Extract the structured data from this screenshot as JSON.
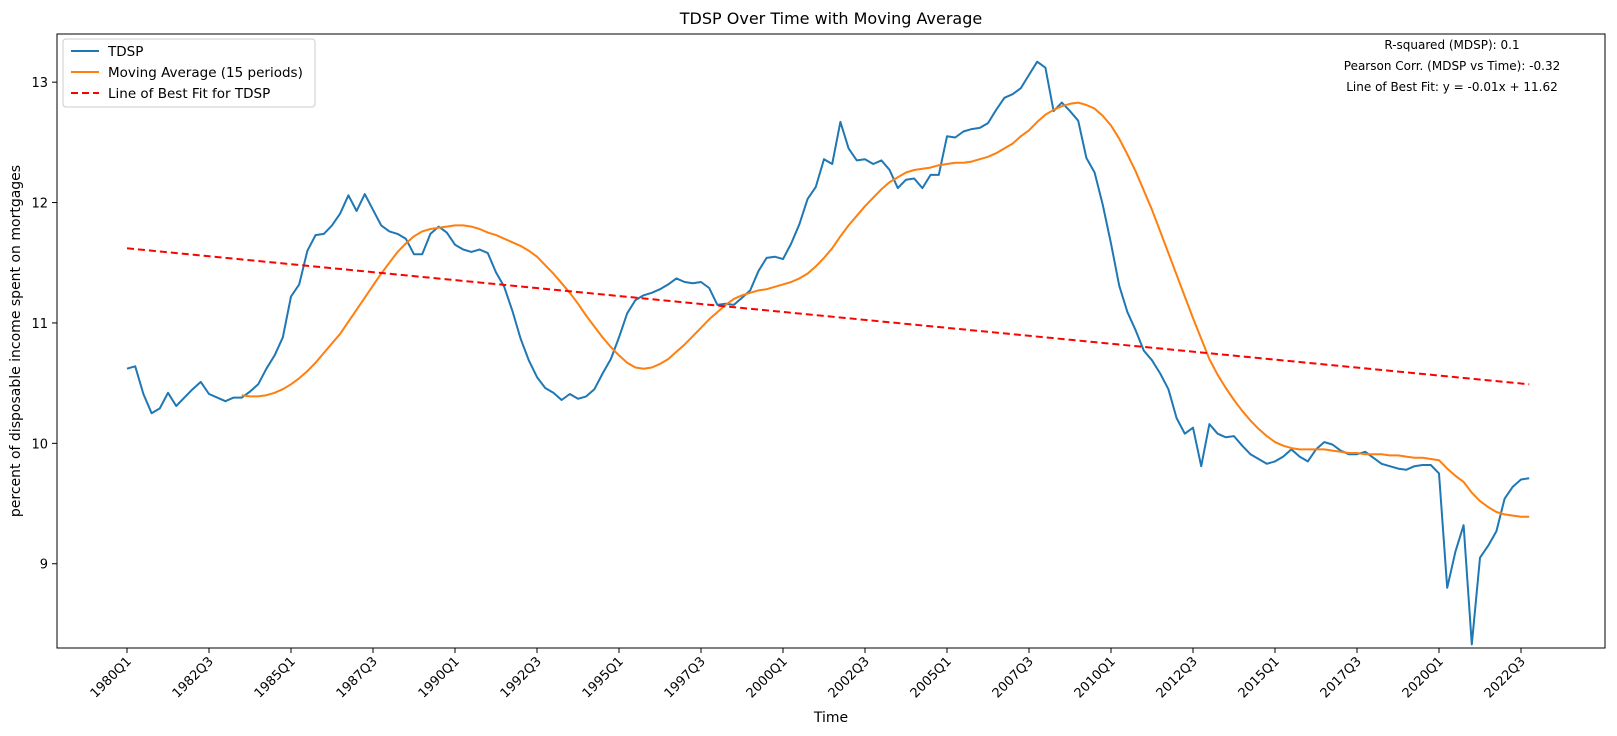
{
  "chart_data": {
    "type": "line",
    "title": "TDSP Over Time with Moving Average",
    "xlabel": "Time",
    "ylabel": "percent of disposable income spent on mortgages",
    "ylim": [
      8.3,
      13.4
    ],
    "yticks": [
      9,
      10,
      11,
      12,
      13
    ],
    "xticks": [
      "1980Q1",
      "1982Q3",
      "1985Q1",
      "1987Q3",
      "1990Q1",
      "1992Q3",
      "1995Q1",
      "1997Q3",
      "2000Q1",
      "2002Q3",
      "2005Q1",
      "2007Q3",
      "2010Q1",
      "2012Q3",
      "2015Q1",
      "2017Q3",
      "2020Q1",
      "2022Q3"
    ],
    "grid": false,
    "legend_position": "top-left",
    "legend": [
      {
        "label": "TDSP",
        "color": "#1f77b4",
        "style": "solid"
      },
      {
        "label": "Moving Average (15 periods)",
        "color": "#ff7f0e",
        "style": "solid"
      },
      {
        "label": "Line of Best Fit for TDSP",
        "color": "#ff0000",
        "style": "dashed"
      }
    ],
    "annotations": [
      "R-squared (MDSP): 0.1",
      "Pearson Corr. (MDSP vs Time): -0.32",
      "Line of Best Fit: y = -0.01x + 11.62"
    ],
    "series": [
      {
        "name": "TDSP",
        "color": "#1f77b4",
        "start_index": 0,
        "values": [
          10.62,
          10.64,
          10.41,
          10.25,
          10.29,
          10.42,
          10.31,
          10.38,
          10.45,
          10.51,
          10.41,
          10.38,
          10.35,
          10.38,
          10.38,
          10.43,
          10.49,
          10.62,
          10.73,
          10.88,
          11.22,
          11.32,
          11.6,
          11.73,
          11.74,
          11.81,
          11.91,
          12.06,
          11.93,
          12.07,
          11.94,
          11.81,
          11.76,
          11.74,
          11.7,
          11.57,
          11.57,
          11.74,
          11.8,
          11.75,
          11.65,
          11.61,
          11.59,
          11.61,
          11.58,
          11.42,
          11.3,
          11.1,
          10.87,
          10.69,
          10.55,
          10.46,
          10.42,
          10.36,
          10.41,
          10.37,
          10.39,
          10.45,
          10.58,
          10.7,
          10.88,
          11.08,
          11.19,
          11.23,
          11.25,
          11.28,
          11.32,
          11.37,
          11.34,
          11.33,
          11.34,
          11.29,
          11.15,
          11.16,
          11.15,
          11.21,
          11.27,
          11.43,
          11.54,
          11.55,
          11.53,
          11.66,
          11.82,
          12.03,
          12.13,
          12.36,
          12.32,
          12.67,
          12.45,
          12.35,
          12.36,
          12.32,
          12.35,
          12.27,
          12.12,
          12.19,
          12.2,
          12.12,
          12.23,
          12.23,
          12.55,
          12.54,
          12.59,
          12.61,
          12.62,
          12.66,
          12.77,
          12.87,
          12.9,
          12.95,
          13.06,
          13.17,
          13.12,
          12.76,
          12.83,
          12.76,
          12.68,
          12.37,
          12.25,
          11.98,
          11.66,
          11.31,
          11.09,
          10.94,
          10.77,
          10.69,
          10.58,
          10.45,
          10.21,
          10.08,
          10.13,
          9.81,
          10.16,
          10.08,
          10.05,
          10.06,
          9.98,
          9.91,
          9.87,
          9.83,
          9.85,
          9.89,
          9.95,
          9.89,
          9.85,
          9.95,
          10.01,
          9.99,
          9.94,
          9.91,
          9.91,
          9.93,
          9.88,
          9.83,
          9.81,
          9.79,
          9.78,
          9.81,
          9.82,
          9.82,
          9.75,
          8.8,
          9.1,
          9.32,
          8.33,
          9.05,
          9.15,
          9.27,
          9.54,
          9.64,
          9.7,
          9.71
        ]
      },
      {
        "name": "Moving Average (15 periods)",
        "color": "#ff7f0e",
        "start_index": 14,
        "values": [
          10.4,
          10.39,
          10.39,
          10.4,
          10.42,
          10.45,
          10.49,
          10.54,
          10.6,
          10.67,
          10.75,
          10.83,
          10.91,
          11.01,
          11.11,
          11.21,
          11.31,
          11.41,
          11.5,
          11.59,
          11.66,
          11.72,
          11.76,
          11.78,
          11.79,
          11.8,
          11.81,
          11.81,
          11.8,
          11.78,
          11.75,
          11.73,
          11.7,
          11.67,
          11.64,
          11.6,
          11.55,
          11.48,
          11.41,
          11.33,
          11.25,
          11.16,
          11.06,
          10.97,
          10.88,
          10.8,
          10.73,
          10.67,
          10.63,
          10.62,
          10.63,
          10.66,
          10.7,
          10.76,
          10.82,
          10.89,
          10.96,
          11.03,
          11.09,
          11.15,
          11.2,
          11.23,
          11.25,
          11.27,
          11.28,
          11.3,
          11.32,
          11.34,
          11.37,
          11.41,
          11.47,
          11.54,
          11.62,
          11.72,
          11.81,
          11.89,
          11.97,
          12.04,
          12.11,
          12.17,
          12.21,
          12.25,
          12.27,
          12.28,
          12.29,
          12.31,
          12.32,
          12.33,
          12.33,
          12.34,
          12.36,
          12.38,
          12.41,
          12.45,
          12.49,
          12.55,
          12.6,
          12.67,
          12.73,
          12.77,
          12.8,
          12.82,
          12.83,
          12.81,
          12.78,
          12.72,
          12.64,
          12.53,
          12.4,
          12.26,
          12.1,
          11.94,
          11.76,
          11.58,
          11.4,
          11.22,
          11.04,
          10.87,
          10.7,
          10.57,
          10.46,
          10.36,
          10.27,
          10.19,
          10.12,
          10.06,
          10.01,
          9.98,
          9.96,
          9.95,
          9.95,
          9.95,
          9.95,
          9.94,
          9.93,
          9.92,
          9.92,
          9.91,
          9.91,
          9.91,
          9.9,
          9.9,
          9.89,
          9.88,
          9.88,
          9.87,
          9.86,
          9.79,
          9.73,
          9.68,
          9.59,
          9.52,
          9.47,
          9.43,
          9.41,
          9.4,
          9.39,
          9.39
        ]
      },
      {
        "name": "Line of Best Fit for TDSP",
        "color": "#ff0000",
        "style": "dashed",
        "x": [
          0,
          171
        ],
        "values": [
          11.62,
          10.49
        ]
      }
    ]
  }
}
